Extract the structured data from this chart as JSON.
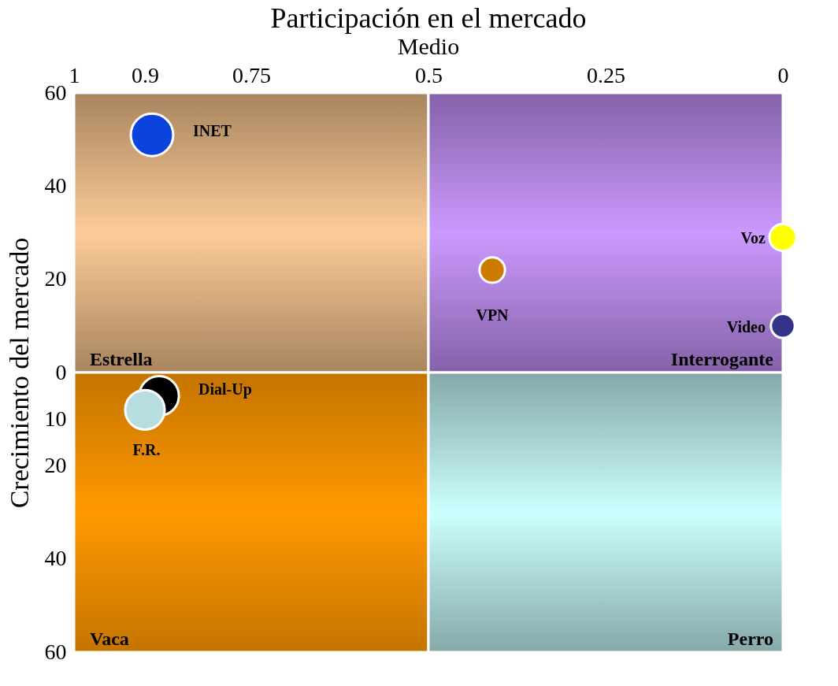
{
  "chart_data": {
    "type": "bubble",
    "title": "Participación en el mercado",
    "subtitle": "Medio",
    "ylabel": "Crecimiento del mercado",
    "xlim": [
      1,
      0
    ],
    "xticks": [
      1,
      0.9,
      0.75,
      0.5,
      0.25,
      0
    ],
    "ylim": [
      -60,
      60
    ],
    "yticks": [
      60,
      40,
      20,
      0,
      {
        "value": -10,
        "label": "10"
      },
      {
        "value": -20,
        "label": "20"
      },
      {
        "value": -40,
        "label": "40"
      },
      {
        "value": -60,
        "label": "60"
      }
    ],
    "legend": false,
    "annotations": [
      "Estrella",
      "Interrogante",
      "Vaca",
      "Perro"
    ],
    "series": [
      {
        "name": "INET",
        "color": "#0a44dd",
        "x": [
          0.89
        ],
        "values": [
          51
        ],
        "sizes": [
          1
        ]
      },
      {
        "name": "VPN",
        "color": "#cc7a00",
        "x": [
          0.41
        ],
        "values": [
          22
        ],
        "sizes": [
          0.36
        ]
      },
      {
        "name": "Voz",
        "color": "#ffff00",
        "x": [
          0
        ],
        "values": [
          29
        ],
        "sizes": [
          0.4
        ]
      },
      {
        "name": "Video",
        "color": "#333388",
        "x": [
          0
        ],
        "values": [
          10
        ],
        "sizes": [
          0.32
        ]
      },
      {
        "name": "Dial-Up",
        "color": "#000000",
        "x": [
          0.88
        ],
        "values": [
          -5
        ],
        "sizes": [
          0.87
        ]
      },
      {
        "name": "F.R.",
        "color": "#b8dde0",
        "x": [
          0.9
        ],
        "values": [
          -8
        ],
        "sizes": [
          0.87
        ]
      }
    ]
  }
}
